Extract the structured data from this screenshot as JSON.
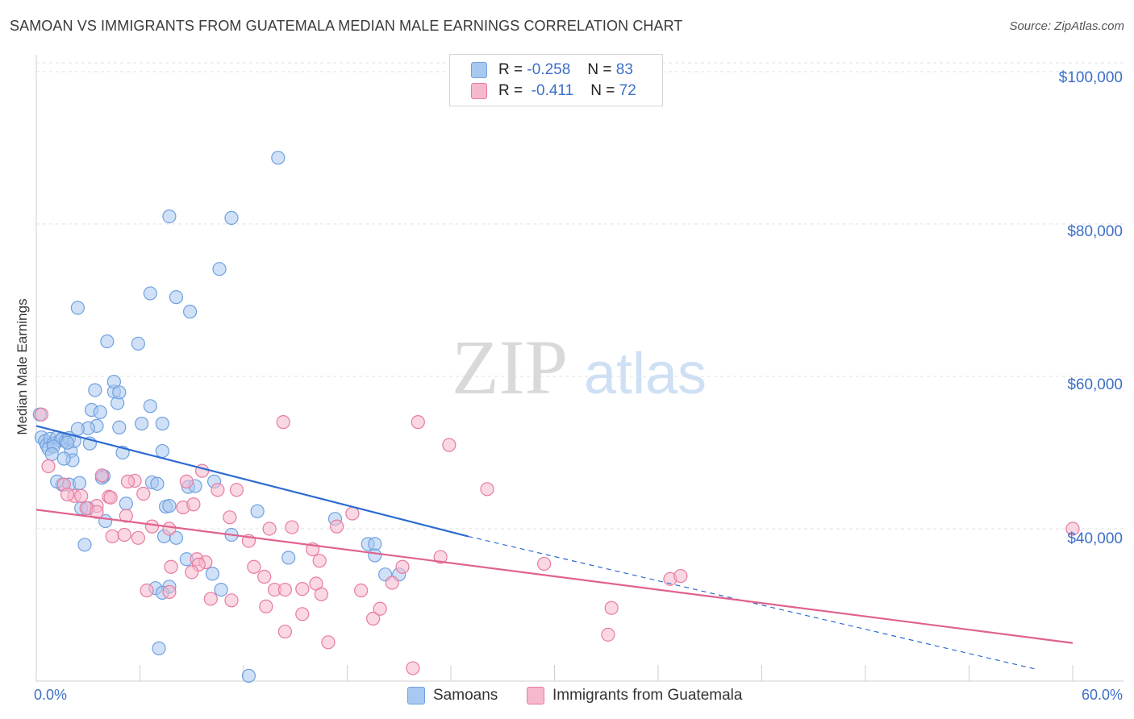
{
  "title": "SAMOAN VS IMMIGRANTS FROM GUATEMALA MEDIAN MALE EARNINGS CORRELATION CHART",
  "source": "Source: ZipAtlas.com",
  "watermark": {
    "zip": "ZIP",
    "atlas": "atlas"
  },
  "legend": {
    "rows": [
      {
        "r_label": "R =",
        "r_value": "-0.258",
        "n_label": "N =",
        "n_value": "83",
        "color": "#a9c8f0"
      },
      {
        "r_label": "R =",
        "r_value": "-0.411",
        "n_label": "N =",
        "n_value": "72",
        "color": "#f5b8cc"
      }
    ]
  },
  "bottom_legend": [
    {
      "label": "Samoans",
      "color": "#a9c8f0"
    },
    {
      "label": "Immigrants from Guatemala",
      "color": "#f5b8cc"
    }
  ],
  "chart_data": {
    "type": "scatter",
    "title": "SAMOAN VS IMMIGRANTS FROM GUATEMALA MEDIAN MALE EARNINGS CORRELATION CHART",
    "xlabel": "",
    "ylabel": "Median Male Earnings",
    "x_tick_labels": [
      "0.0%",
      "60.0%"
    ],
    "y_tick_labels": [
      "$100,000",
      "$80,000",
      "$60,000",
      "$40,000"
    ],
    "y_tick_values": [
      100000,
      80000,
      60000,
      40000
    ],
    "xlim": [
      0,
      60
    ],
    "ylim": [
      20000,
      102000
    ],
    "grid": true,
    "legend_position": "top-center",
    "series": [
      {
        "name": "Samoans",
        "color": "#6fa0e0",
        "fill": "#a9c8f0",
        "trend": {
          "x0": 0,
          "y0": 53500,
          "x1": 25,
          "y1": 39000,
          "dash_to_x": 58,
          "dash_to_y": 21500
        },
        "points": [
          [
            0.2,
            55000
          ],
          [
            0.3,
            52000
          ],
          [
            0.5,
            51500
          ],
          [
            0.6,
            51000
          ],
          [
            0.8,
            51800
          ],
          [
            1.0,
            51200
          ],
          [
            1.2,
            52000
          ],
          [
            1.4,
            51600
          ],
          [
            1.5,
            51800
          ],
          [
            1.7,
            51500
          ],
          [
            1.9,
            51900
          ],
          [
            0.7,
            50500
          ],
          [
            2.0,
            50200
          ],
          [
            2.1,
            49000
          ],
          [
            1.6,
            49200
          ],
          [
            3.5,
            53500
          ],
          [
            3.0,
            53200
          ],
          [
            4.8,
            53300
          ],
          [
            3.1,
            51200
          ],
          [
            3.2,
            55600
          ],
          [
            2.4,
            53100
          ],
          [
            3.7,
            55300
          ],
          [
            3.4,
            58200
          ],
          [
            4.5,
            58000
          ],
          [
            4.7,
            56500
          ],
          [
            4.5,
            59300
          ],
          [
            4.8,
            57900
          ],
          [
            6.6,
            56100
          ],
          [
            6.1,
            53800
          ],
          [
            7.3,
            53800
          ],
          [
            4.1,
            64600
          ],
          [
            5.9,
            64300
          ],
          [
            2.4,
            69000
          ],
          [
            6.6,
            70900
          ],
          [
            8.1,
            70400
          ],
          [
            8.9,
            68500
          ],
          [
            7.7,
            81000
          ],
          [
            11.3,
            80800
          ],
          [
            10.6,
            74100
          ],
          [
            14.0,
            88700
          ],
          [
            1.5,
            45800
          ],
          [
            1.9,
            45800
          ],
          [
            2.5,
            46000
          ],
          [
            1.2,
            46200
          ],
          [
            3.9,
            46900
          ],
          [
            3.8,
            46700
          ],
          [
            6.7,
            46100
          ],
          [
            7.0,
            45900
          ],
          [
            8.8,
            45500
          ],
          [
            9.2,
            45600
          ],
          [
            10.3,
            46200
          ],
          [
            2.6,
            42700
          ],
          [
            3.0,
            42700
          ],
          [
            5.2,
            43300
          ],
          [
            7.5,
            42900
          ],
          [
            7.7,
            43000
          ],
          [
            12.8,
            42300
          ],
          [
            17.3,
            41300
          ],
          [
            4.0,
            41000
          ],
          [
            7.4,
            39000
          ],
          [
            8.1,
            38800
          ],
          [
            11.3,
            39200
          ],
          [
            19.2,
            38000
          ],
          [
            19.6,
            38000
          ],
          [
            2.8,
            37900
          ],
          [
            8.7,
            36000
          ],
          [
            14.6,
            36200
          ],
          [
            19.6,
            36500
          ],
          [
            10.2,
            34100
          ],
          [
            20.2,
            34000
          ],
          [
            21.0,
            34000
          ],
          [
            6.9,
            32200
          ],
          [
            7.7,
            32400
          ],
          [
            10.7,
            32000
          ],
          [
            7.3,
            31600
          ],
          [
            7.1,
            24300
          ],
          [
            12.3,
            20700
          ],
          [
            1.0,
            50800
          ],
          [
            0.9,
            49800
          ],
          [
            2.2,
            51500
          ],
          [
            1.8,
            51300
          ],
          [
            7.3,
            50200
          ],
          [
            5.0,
            50000
          ]
        ]
      },
      {
        "name": "Immigrants from Guatemala",
        "color": "#e87aa0",
        "fill": "#f5b8cc",
        "trend": {
          "x0": 0,
          "y0": 42500,
          "x1": 60,
          "y1": 25000
        },
        "points": [
          [
            0.3,
            55000
          ],
          [
            0.7,
            48200
          ],
          [
            1.6,
            45800
          ],
          [
            2.2,
            44300
          ],
          [
            1.8,
            44500
          ],
          [
            2.6,
            44300
          ],
          [
            3.5,
            43000
          ],
          [
            2.9,
            42700
          ],
          [
            3.5,
            42200
          ],
          [
            3.8,
            47000
          ],
          [
            5.7,
            46300
          ],
          [
            4.2,
            44200
          ],
          [
            5.3,
            46200
          ],
          [
            4.4,
            39000
          ],
          [
            5.1,
            39200
          ],
          [
            5.2,
            41700
          ],
          [
            4.3,
            44100
          ],
          [
            6.2,
            44600
          ],
          [
            6.7,
            40300
          ],
          [
            7.7,
            40000
          ],
          [
            8.7,
            46200
          ],
          [
            8.5,
            42800
          ],
          [
            9.1,
            43200
          ],
          [
            9.6,
            47600
          ],
          [
            10.5,
            45100
          ],
          [
            11.6,
            45100
          ],
          [
            11.2,
            41500
          ],
          [
            12.3,
            38400
          ],
          [
            13.5,
            40000
          ],
          [
            14.8,
            40200
          ],
          [
            12.6,
            35000
          ],
          [
            13.2,
            33700
          ],
          [
            9.3,
            36000
          ],
          [
            9.8,
            35600
          ],
          [
            9.4,
            35300
          ],
          [
            9.0,
            34300
          ],
          [
            7.8,
            35000
          ],
          [
            6.4,
            31900
          ],
          [
            7.7,
            31700
          ],
          [
            10.1,
            30800
          ],
          [
            11.3,
            30600
          ],
          [
            13.3,
            29800
          ],
          [
            13.8,
            32000
          ],
          [
            14.4,
            32000
          ],
          [
            15.4,
            32100
          ],
          [
            16.2,
            32800
          ],
          [
            16.4,
            35800
          ],
          [
            16.0,
            37300
          ],
          [
            17.4,
            40300
          ],
          [
            18.3,
            42000
          ],
          [
            16.5,
            31400
          ],
          [
            18.8,
            31900
          ],
          [
            20.6,
            32900
          ],
          [
            21.2,
            35000
          ],
          [
            19.5,
            28200
          ],
          [
            19.9,
            29500
          ],
          [
            15.4,
            28800
          ],
          [
            14.4,
            26500
          ],
          [
            16.9,
            25100
          ],
          [
            21.8,
            21700
          ],
          [
            14.3,
            54000
          ],
          [
            22.1,
            54000
          ],
          [
            23.9,
            51000
          ],
          [
            26.1,
            45200
          ],
          [
            23.4,
            36300
          ],
          [
            29.4,
            35400
          ],
          [
            33.1,
            26100
          ],
          [
            33.3,
            29600
          ],
          [
            36.7,
            33400
          ],
          [
            37.3,
            33800
          ],
          [
            60.0,
            40000
          ],
          [
            5.9,
            38800
          ]
        ]
      }
    ]
  }
}
